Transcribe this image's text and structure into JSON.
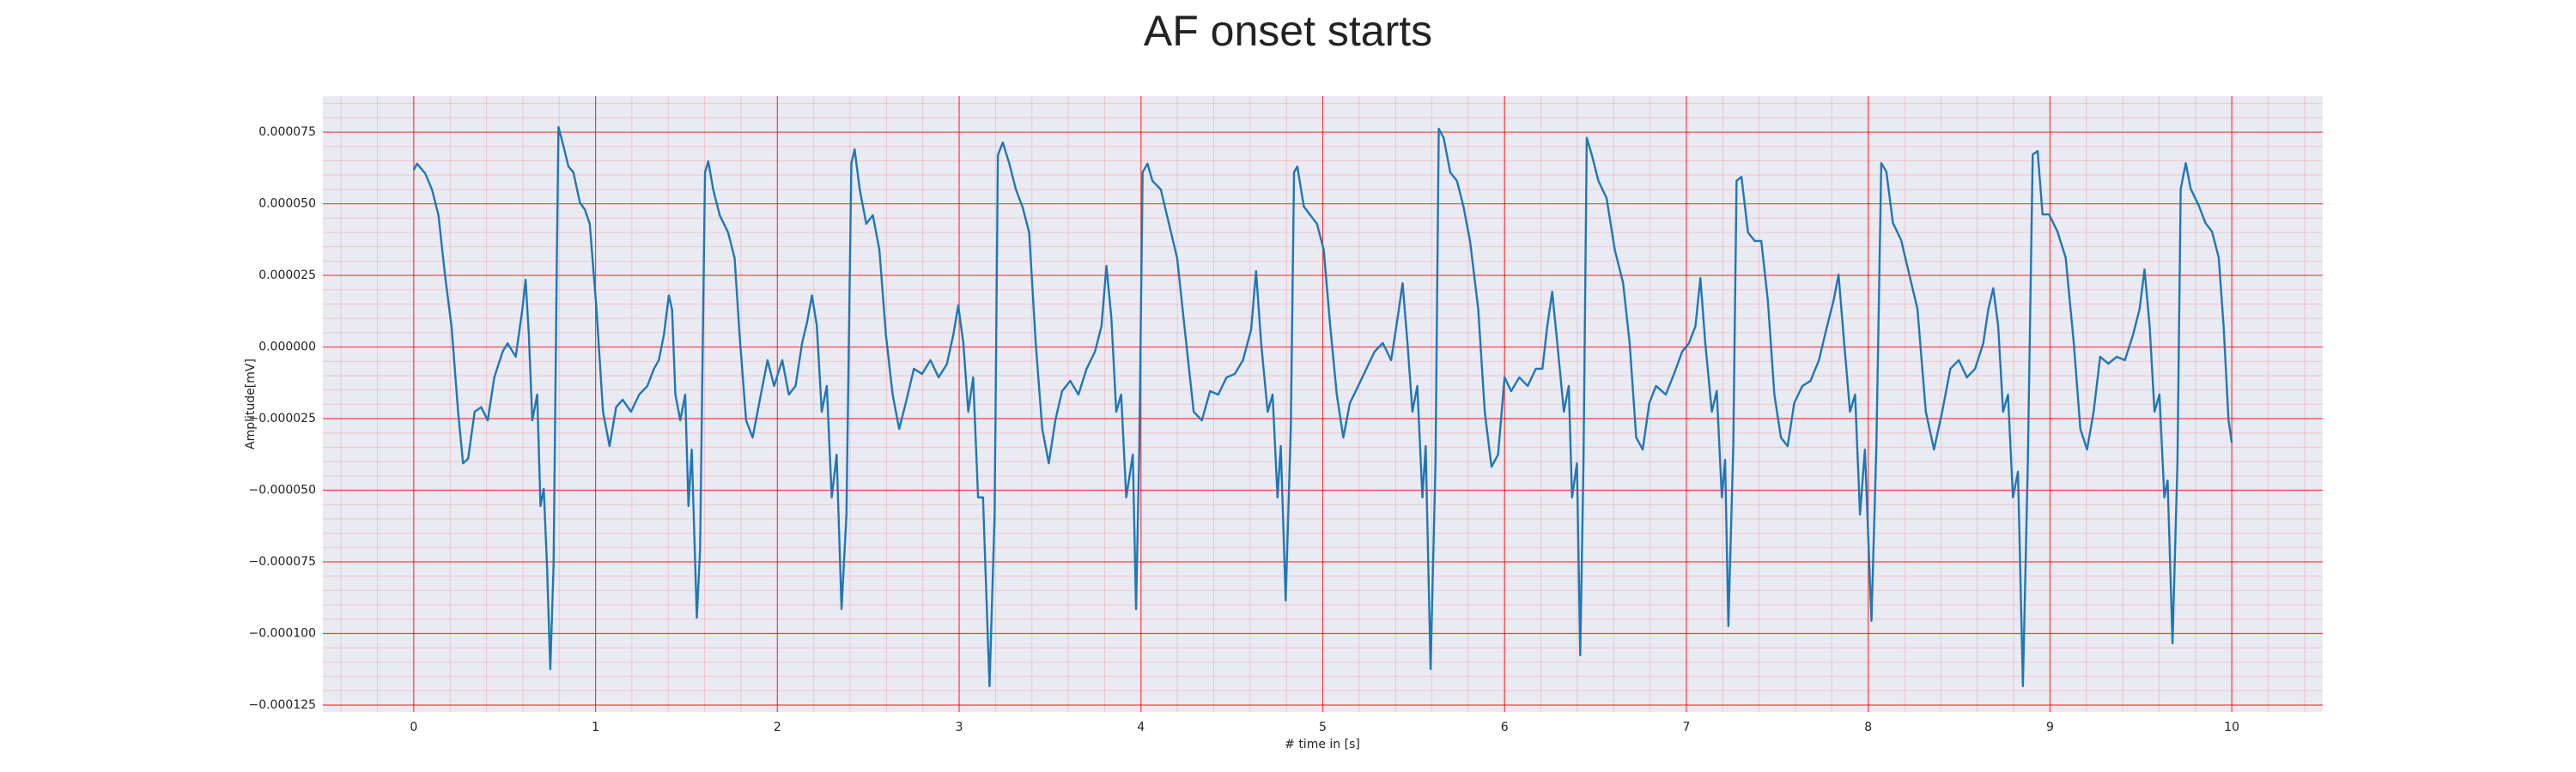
{
  "chart_data": {
    "type": "line",
    "title": "AF onset starts",
    "xlabel": "# time in [s]",
    "ylabel": "Amplitude[mV]",
    "color": "#1f77b4",
    "background": "#eaeaf2",
    "grid_color": "#ff0000",
    "grid": true,
    "xlim": [
      -0.5,
      10.5
    ],
    "xticks": [
      0,
      1,
      2,
      3,
      4,
      5,
      6,
      7,
      8,
      9,
      10
    ],
    "ylim": [
      -0.0001274,
      8.76e-05
    ],
    "yticks": [
      {
        "value": -0.000125,
        "label": "−0.000125"
      },
      {
        "value": -0.0001,
        "label": "−0.000100"
      },
      {
        "value": -7.5e-05,
        "label": "−0.000075"
      },
      {
        "value": -5e-05,
        "label": "−0.000050"
      },
      {
        "value": -2.5e-05,
        "label": "−0.000025"
      },
      {
        "value": 0,
        "label": "0.000000"
      },
      {
        "value": 2.5e-05,
        "label": "0.000025"
      },
      {
        "value": 5e-05,
        "label": "0.000050"
      },
      {
        "value": 7.5e-05,
        "label": "0.000075"
      }
    ],
    "x": [
      0,
      0.018,
      0.063,
      0.1,
      0.136,
      0.172,
      0.208,
      0.244,
      0.271,
      0.299,
      0.335,
      0.371,
      0.407,
      0.443,
      0.489,
      0.516,
      0.561,
      0.597,
      0.615,
      0.633,
      0.652,
      0.679,
      0.697,
      0.715,
      0.733,
      0.751,
      0.769,
      0.787,
      0.796,
      0.824,
      0.851,
      0.878,
      0.914,
      0.941,
      0.968,
      1.005,
      1.041,
      1.077,
      1.113,
      1.149,
      1.195,
      1.24,
      1.285,
      1.321,
      1.348,
      1.376,
      1.403,
      1.421,
      1.439,
      1.466,
      1.493,
      1.511,
      1.529,
      1.557,
      1.575,
      1.602,
      1.62,
      1.647,
      1.683,
      1.729,
      1.765,
      1.792,
      1.828,
      1.864,
      1.9,
      1.946,
      1.982,
      2.027,
      2.063,
      2.1,
      2.136,
      2.163,
      2.19,
      2.217,
      2.244,
      2.272,
      2.299,
      2.326,
      2.353,
      2.38,
      2.407,
      2.425,
      2.453,
      2.489,
      2.525,
      2.561,
      2.597,
      2.634,
      2.67,
      2.706,
      2.751,
      2.796,
      2.842,
      2.887,
      2.932,
      2.968,
      2.995,
      3.023,
      3.05,
      3.077,
      3.104,
      3.131,
      3.167,
      3.195,
      3.213,
      3.24,
      3.276,
      3.312,
      3.348,
      3.385,
      3.421,
      3.457,
      3.493,
      3.529,
      3.566,
      3.611,
      3.656,
      3.701,
      3.747,
      3.783,
      3.81,
      3.837,
      3.864,
      3.891,
      3.919,
      3.955,
      3.973,
      3.991,
      4.009,
      4.036,
      4.063,
      4.109,
      4.154,
      4.199,
      4.244,
      4.29,
      4.335,
      4.38,
      4.425,
      4.471,
      4.516,
      4.561,
      4.606,
      4.633,
      4.661,
      4.697,
      4.724,
      4.751,
      4.769,
      4.796,
      4.824,
      4.842,
      4.86,
      4.896,
      4.932,
      4.968,
      5.005,
      5.041,
      5.077,
      5.113,
      5.149,
      5.195,
      5.24,
      5.285,
      5.33,
      5.376,
      5.412,
      5.439,
      5.466,
      5.493,
      5.52,
      5.548,
      5.566,
      5.593,
      5.62,
      5.638,
      5.665,
      5.701,
      5.738,
      5.774,
      5.81,
      5.855,
      5.891,
      5.928,
      5.964,
      6,
      6.036,
      6.081,
      6.127,
      6.172,
      6.208,
      6.235,
      6.262,
      6.29,
      6.326,
      6.353,
      6.371,
      6.398,
      6.416,
      6.434,
      6.452,
      6.48,
      6.516,
      6.561,
      6.606,
      6.652,
      6.688,
      6.724,
      6.76,
      6.796,
      6.833,
      6.887,
      6.932,
      6.977,
      7.014,
      7.05,
      7.077,
      7.104,
      7.14,
      7.167,
      7.195,
      7.213,
      7.231,
      7.258,
      7.276,
      7.303,
      7.339,
      7.376,
      7.412,
      7.448,
      7.484,
      7.52,
      7.557,
      7.593,
      7.638,
      7.683,
      7.729,
      7.774,
      7.81,
      7.837,
      7.864,
      7.9,
      7.928,
      7.955,
      7.982,
      8.018,
      8.045,
      8.072,
      8.1,
      8.136,
      8.181,
      8.226,
      8.271,
      8.317,
      8.362,
      8.407,
      8.452,
      8.498,
      8.543,
      8.588,
      8.633,
      8.661,
      8.688,
      8.715,
      8.742,
      8.769,
      8.796,
      8.824,
      8.851,
      8.878,
      8.905,
      8.932,
      8.959,
      8.995,
      9.041,
      9.086,
      9.131,
      9.167,
      9.204,
      9.24,
      9.276,
      9.321,
      9.367,
      9.412,
      9.457,
      9.493,
      9.52,
      9.548,
      9.575,
      9.602,
      9.629,
      9.647,
      9.674,
      9.701,
      9.719,
      9.747,
      9.774,
      9.819,
      9.855,
      9.891,
      9.928,
      9.955,
      9.982,
      10
    ],
    "values": [
      6.18e-05,
      6.4e-05,
      6.06e-05,
      5.5e-05,
      4.6e-05,
      2.5e-05,
      7e-06,
      -2.26e-05,
      -4.06e-05,
      -3.9e-05,
      -2.26e-05,
      -2.1e-05,
      -2.56e-05,
      -1.06e-05,
      -1.6e-06,
      1.3e-06,
      -3.4e-06,
      1.3e-05,
      2.35e-05,
      4.3e-06,
      -2.56e-05,
      -1.66e-05,
      -5.55e-05,
      -4.95e-05,
      -7.65e-05,
      -0.0001124,
      -7.65e-05,
      3.1e-05,
      7.68e-05,
      7e-05,
      6.3e-05,
      6.1e-05,
      5.04e-05,
      4.8e-05,
      4.3e-05,
      1.33e-05,
      -2.26e-05,
      -3.46e-05,
      -2.1e-05,
      -1.84e-05,
      -2.26e-05,
      -1.66e-05,
      -1.36e-05,
      -7.6e-06,
      -4.6e-06,
      4.3e-06,
      1.8e-05,
      1.3e-05,
      -1.66e-05,
      -2.56e-05,
      -1.66e-05,
      -5.55e-05,
      -3.58e-05,
      -9.45e-05,
      -7.05e-05,
      6.1e-05,
      6.48e-05,
      5.5e-05,
      4.6e-05,
      4e-05,
      3.1e-05,
      4.3e-06,
      -2.56e-05,
      -3.16e-05,
      -1.96e-05,
      -4.6e-06,
      -1.36e-05,
      -4.6e-06,
      -1.66e-05,
      -1.36e-05,
      1.4e-06,
      8.5e-06,
      1.8e-05,
      7.5e-06,
      -2.26e-05,
      -1.36e-05,
      -5.25e-05,
      -3.76e-05,
      -9.15e-05,
      -5.85e-05,
      6.4e-05,
      6.9e-05,
      5.5e-05,
      4.3e-05,
      4.6e-05,
      3.4e-05,
      4.3e-06,
      -1.66e-05,
      -2.86e-05,
      -1.96e-05,
      -7.6e-06,
      -9.4e-06,
      -4.6e-06,
      -1.06e-05,
      -6e-06,
      4.3e-06,
      1.45e-05,
      1.3e-06,
      -2.26e-05,
      -1.06e-05,
      -5.25e-05,
      -5.25e-05,
      -0.0001184,
      -5.85e-05,
      6.7e-05,
      7.14e-05,
      6.4e-05,
      5.5e-05,
      4.9e-05,
      4e-05,
      1.4e-06,
      -2.86e-05,
      -4.06e-05,
      -2.56e-05,
      -1.54e-05,
      -1.18e-05,
      -1.66e-05,
      -7.6e-06,
      -1.6e-06,
      7.3e-06,
      2.83e-05,
      1.03e-05,
      -2.26e-05,
      -1.66e-05,
      -5.25e-05,
      -3.76e-05,
      -9.15e-05,
      -3.46e-05,
      6.1e-05,
      6.4e-05,
      5.8e-05,
      5.5e-05,
      4.3e-05,
      3.1e-05,
      4.3e-06,
      -2.26e-05,
      -2.56e-05,
      -1.54e-05,
      -1.66e-05,
      -1.06e-05,
      -9.4e-06,
      -4.6e-06,
      6.1e-06,
      2.65e-05,
      1.3e-06,
      -2.26e-05,
      -1.66e-05,
      -5.25e-05,
      -3.46e-05,
      -8.85e-05,
      -2.86e-05,
      6.1e-05,
      6.3e-05,
      4.9e-05,
      4.6e-05,
      4.3e-05,
      3.4e-05,
      7.3e-06,
      -1.66e-05,
      -3.16e-05,
      -1.96e-05,
      -1.36e-05,
      -7.6e-06,
      -1.6e-06,
      1.4e-06,
      -4.6e-06,
      1.03e-05,
      2.23e-05,
      1.3e-06,
      -2.26e-05,
      -1.36e-05,
      -5.25e-05,
      -3.46e-05,
      -0.0001124,
      -4.06e-05,
      7.62e-05,
      7.3e-05,
      6.1e-05,
      5.8e-05,
      4.9e-05,
      3.7e-05,
      1.33e-05,
      -2.26e-05,
      -4.18e-05,
      -3.76e-05,
      -1.06e-05,
      -1.54e-05,
      -1.06e-05,
      -1.36e-05,
      -7.6e-06,
      -7.6e-06,
      7.3e-06,
      1.93e-05,
      1.3e-06,
      -2.26e-05,
      -1.36e-05,
      -5.25e-05,
      -4.06e-05,
      -0.0001076,
      -4.06e-05,
      7.3e-05,
      6.7e-05,
      5.8e-05,
      5.2e-05,
      3.4e-05,
      2.23e-05,
      1.3e-06,
      -3.16e-05,
      -3.58e-05,
      -1.96e-05,
      -1.36e-05,
      -1.66e-05,
      -9.4e-06,
      -1.6e-06,
      1.3e-06,
      7.3e-06,
      2.41e-05,
      1.3e-06,
      -2.26e-05,
      -1.54e-05,
      -5.25e-05,
      -3.94e-05,
      -9.74e-05,
      -3.46e-05,
      5.8e-05,
      5.94e-05,
      4e-05,
      3.7e-05,
      3.7e-05,
      1.63e-05,
      -1.66e-05,
      -3.16e-05,
      -3.46e-05,
      -1.96e-05,
      -1.36e-05,
      -1.18e-05,
      -4.6e-06,
      7.3e-06,
      1.63e-05,
      2.53e-05,
      4.3e-06,
      -2.26e-05,
      -1.66e-05,
      -5.85e-05,
      -3.58e-05,
      -9.56e-05,
      -3.46e-05,
      6.42e-05,
      6.12e-05,
      4.33e-05,
      3.74e-05,
      2.53e-05,
      1.33e-05,
      -2.26e-05,
      -3.58e-05,
      -2.26e-05,
      -7.6e-06,
      -4.6e-06,
      -1.06e-05,
      -7.6e-06,
      1.3e-06,
      1.33e-05,
      2.05e-05,
      7.3e-06,
      -2.26e-05,
      -1.66e-05,
      -5.25e-05,
      -4.35e-05,
      -0.0001184,
      -4.06e-05,
      6.72e-05,
      6.84e-05,
      4.63e-05,
      4.63e-05,
      4.03e-05,
      3.13e-05,
      1.3e-06,
      -2.86e-05,
      -3.58e-05,
      -2.26e-05,
      -3.4e-06,
      -5.8e-06,
      -3.4e-06,
      -4.6e-06,
      4.3e-06,
      1.33e-05,
      2.71e-05,
      7.3e-06,
      -2.26e-05,
      -1.66e-05,
      -5.25e-05,
      -4.66e-05,
      -0.0001034,
      -4.06e-05,
      5.52e-05,
      6.42e-05,
      5.52e-05,
      4.93e-05,
      4.33e-05,
      4.03e-05,
      3.13e-05,
      7.3e-06,
      -2.56e-05,
      -3.34e-05
    ]
  }
}
